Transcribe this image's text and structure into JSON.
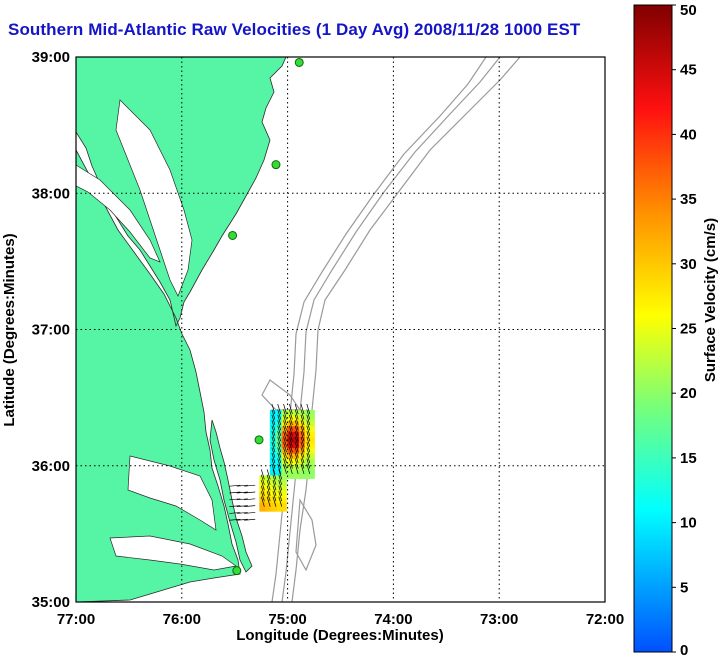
{
  "title": "Southern Mid-Atlantic Raw Velocities (1 Day Avg) 2008/11/28 1000 EST",
  "x_axis": {
    "label": "Longitude (Degrees:Minutes)",
    "ticks": [
      "77:00",
      "76:00",
      "75:00",
      "74:00",
      "73:00",
      "72:00"
    ]
  },
  "y_axis": {
    "label": "Latitude (Degrees:Minutes)",
    "ticks": [
      "39:00",
      "38:00",
      "37:00",
      "36:00",
      "35:00"
    ]
  },
  "colorbar": {
    "label": "Surface Velocity (cm/s)",
    "ticks": [
      "50",
      "45",
      "40",
      "35",
      "30",
      "25",
      "20",
      "15",
      "10",
      "5",
      "0"
    ],
    "min": 0,
    "max": 50
  },
  "map": {
    "lon_range": [
      -77,
      -72
    ],
    "lat_range": [
      35,
      39
    ],
    "land_color": "#55f5a5",
    "bathymetry_color": "#9a9a9a",
    "grid": "dotted",
    "stations": [
      {
        "lon": -74.89,
        "lat": 38.96
      },
      {
        "lon": -75.11,
        "lat": 38.21
      },
      {
        "lon": -75.52,
        "lat": 37.69
      },
      {
        "lon": -75.27,
        "lat": 36.19
      },
      {
        "lon": -75.48,
        "lat": 35.23
      }
    ]
  }
}
